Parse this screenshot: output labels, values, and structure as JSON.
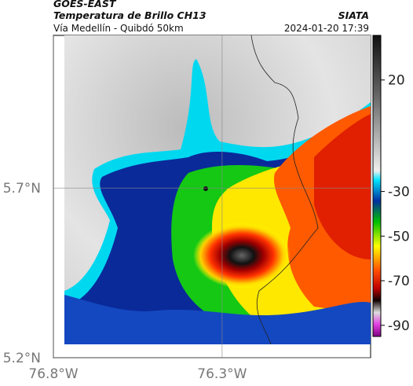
{
  "header": {
    "source": "GOES-EAST",
    "title": "Temperatura de Brillo CH13",
    "subtitle": "Vía Medellín - Quibdó 50km",
    "agency": "SIATA",
    "datetime": "2024-01-20 17:39"
  },
  "map": {
    "xlim": [
      -76.8,
      -75.86
    ],
    "ylim": [
      5.2,
      6.15
    ],
    "xticks": [
      {
        "value": -76.8,
        "label": "76.8°W"
      },
      {
        "value": -76.3,
        "label": "76.3°W"
      }
    ],
    "yticks": [
      {
        "value": 5.7,
        "label": "5.7°N"
      },
      {
        "value": 5.2,
        "label": "5.2°N"
      }
    ]
  },
  "colorbar": {
    "lim": [
      40,
      -95
    ],
    "ticks": [
      20,
      -30,
      -50,
      -70,
      -90
    ]
  }
}
